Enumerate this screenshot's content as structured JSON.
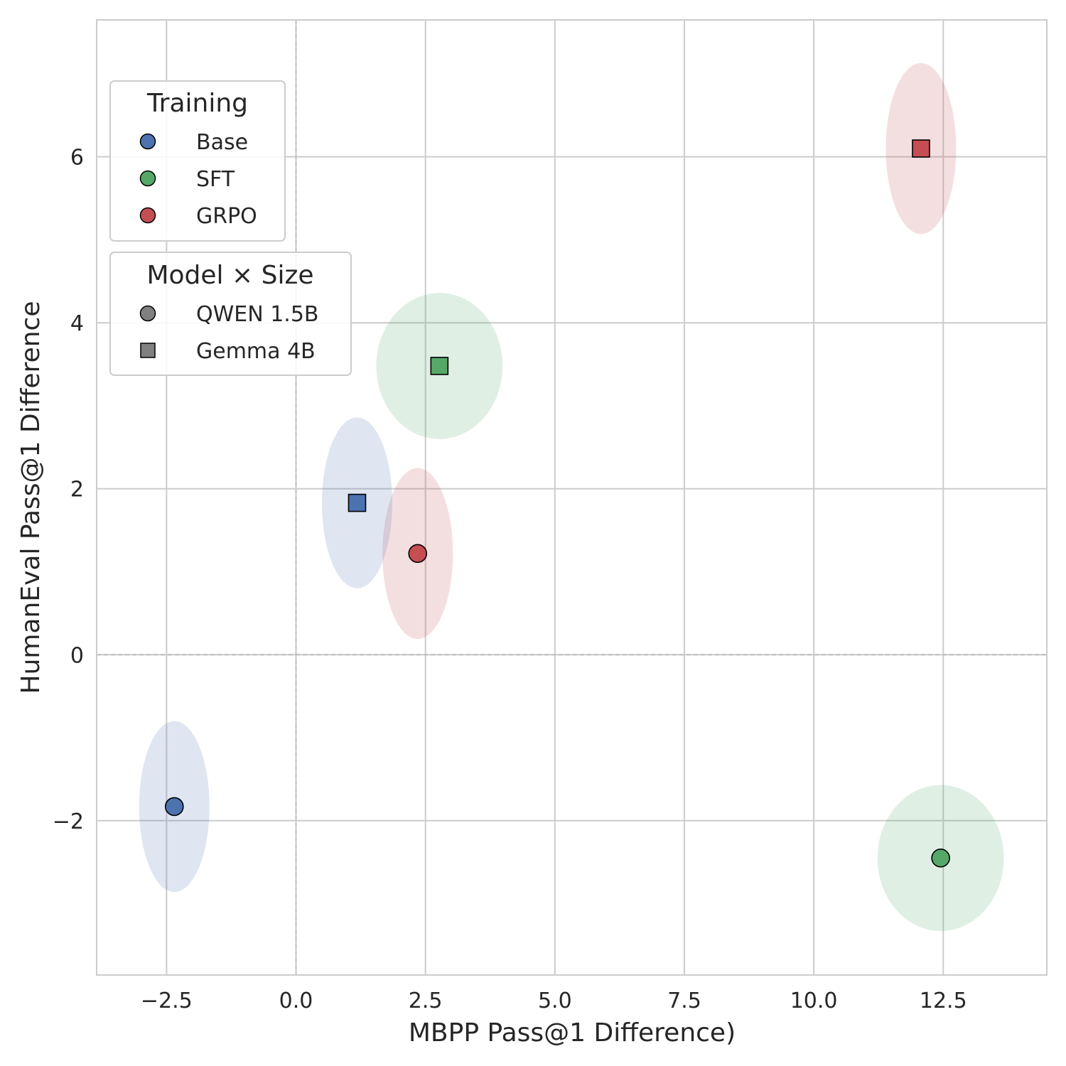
{
  "chart_data": {
    "type": "scatter",
    "title": "",
    "xlabel": "MBPP Pass@1 Difference)",
    "ylabel": "HumanEval Pass@1 Difference",
    "xlim": [
      -3.85,
      14.5
    ],
    "ylim": [
      -3.86,
      7.65
    ],
    "xticks": [
      -2.5,
      0.0,
      2.5,
      5.0,
      7.5,
      10.0,
      12.5
    ],
    "xtick_labels": [
      "−2.5",
      "0.0",
      "2.5",
      "5.0",
      "7.5",
      "10.0",
      "12.5"
    ],
    "yticks": [
      -2,
      0,
      2,
      4,
      6
    ],
    "ytick_labels": [
      "−2",
      "0",
      "2",
      "4",
      "6"
    ],
    "grid": true,
    "zero_lines_dashed": true,
    "colors": {
      "Base": "#4c72b0",
      "SFT": "#55a868",
      "GRPO": "#c44e52",
      "neutral": "#808080",
      "grid": "#cccccc",
      "text": "#262626"
    },
    "points": [
      {
        "training": "Base",
        "model": "QWEN 1.5B",
        "marker": "circle",
        "x": -2.35,
        "y": -1.83,
        "ex": 0.68,
        "ey": 1.03
      },
      {
        "training": "SFT",
        "model": "QWEN 1.5B",
        "marker": "circle",
        "x": 12.45,
        "y": -2.45,
        "ex": 1.22,
        "ey": 0.88
      },
      {
        "training": "GRPO",
        "model": "QWEN 1.5B",
        "marker": "circle",
        "x": 2.35,
        "y": 1.22,
        "ex": 0.68,
        "ey": 1.03
      },
      {
        "training": "Base",
        "model": "Gemma 4B",
        "marker": "square",
        "x": 1.18,
        "y": 1.83,
        "ex": 0.68,
        "ey": 1.03
      },
      {
        "training": "SFT",
        "model": "Gemma 4B",
        "marker": "square",
        "x": 2.77,
        "y": 3.48,
        "ex": 1.22,
        "ey": 0.88
      },
      {
        "training": "GRPO",
        "model": "Gemma 4B",
        "marker": "square",
        "x": 12.07,
        "y": 6.1,
        "ex": 0.68,
        "ey": 1.03
      }
    ],
    "legends": [
      {
        "title": "Training",
        "placement": "upper-left",
        "entries": [
          {
            "label": "Base",
            "marker": "circle",
            "color": "#4c72b0"
          },
          {
            "label": "SFT",
            "marker": "circle",
            "color": "#55a868"
          },
          {
            "label": "GRPO",
            "marker": "circle",
            "color": "#c44e52"
          }
        ]
      },
      {
        "title": "Model × Size",
        "placement": "upper-left",
        "entries": [
          {
            "label": "QWEN 1.5B",
            "marker": "circle",
            "color": "#808080"
          },
          {
            "label": "Gemma 4B",
            "marker": "square",
            "color": "#808080"
          }
        ]
      }
    ]
  }
}
